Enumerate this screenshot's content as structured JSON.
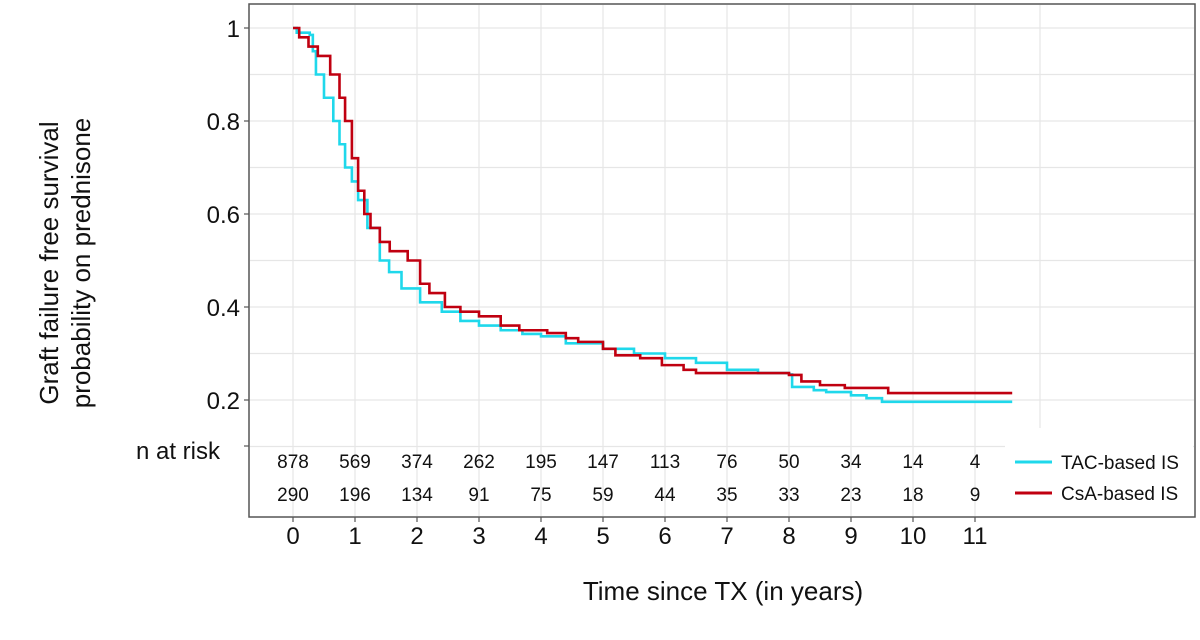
{
  "chart_data": {
    "type": "line",
    "subtype": "kaplan-meier",
    "title": "",
    "xlabel": "Time since TX (in years)",
    "ylabel_lines": [
      "Graft failure free survival",
      "probability on prednisone"
    ],
    "xlim": [
      0,
      11.6
    ],
    "ylim": [
      0.1,
      1.0
    ],
    "x_ticks": [
      0,
      1,
      2,
      3,
      4,
      5,
      6,
      7,
      8,
      9,
      10,
      11
    ],
    "x_tick_labels": [
      "0",
      "1",
      "2",
      "3",
      "4",
      "5",
      "6",
      "7",
      "8",
      "9",
      "10",
      "11"
    ],
    "y_ticks": [
      0.2,
      0.4,
      0.6,
      0.8,
      1.0
    ],
    "y_tick_labels": [
      "0.2",
      "0.4",
      "0.6",
      "0.8",
      "1"
    ],
    "grid": true,
    "legend_position": "bottom-right",
    "series": [
      {
        "name": "TAC-based IS",
        "color": "#1fd8eb",
        "x": [
          0,
          0.06,
          0.27,
          0.32,
          0.37,
          0.5,
          0.65,
          0.75,
          0.84,
          0.95,
          1.05,
          1.2,
          1.4,
          1.55,
          1.75,
          2.05,
          2.4,
          2.7,
          3.0,
          3.35,
          3.7,
          4.0,
          4.4,
          5.0,
          5.5,
          6.0,
          6.5,
          7.0,
          7.5,
          8.0,
          8.05,
          8.4,
          8.6,
          9.0,
          9.25,
          9.5,
          11.6
        ],
        "y": [
          1.0,
          0.99,
          0.985,
          0.95,
          0.9,
          0.85,
          0.8,
          0.75,
          0.7,
          0.67,
          0.63,
          0.57,
          0.5,
          0.475,
          0.44,
          0.41,
          0.39,
          0.37,
          0.36,
          0.35,
          0.342,
          0.337,
          0.322,
          0.31,
          0.3,
          0.29,
          0.28,
          0.265,
          0.258,
          0.255,
          0.228,
          0.221,
          0.217,
          0.21,
          0.204,
          0.196,
          0.196
        ]
      },
      {
        "name": "CsA-based IS",
        "color": "#c00010",
        "x": [
          0,
          0.1,
          0.25,
          0.4,
          0.6,
          0.75,
          0.84,
          0.95,
          1.05,
          1.15,
          1.25,
          1.4,
          1.56,
          1.85,
          2.05,
          2.2,
          2.45,
          2.7,
          3.0,
          3.35,
          3.65,
          4.1,
          4.4,
          4.6,
          5.0,
          5.2,
          5.6,
          5.95,
          6.3,
          6.5,
          8.0,
          8.2,
          8.5,
          8.9,
          9.6,
          11.6
        ],
        "y": [
          1.0,
          0.98,
          0.96,
          0.94,
          0.9,
          0.85,
          0.8,
          0.72,
          0.65,
          0.6,
          0.57,
          0.54,
          0.52,
          0.5,
          0.45,
          0.43,
          0.4,
          0.39,
          0.38,
          0.36,
          0.35,
          0.344,
          0.333,
          0.325,
          0.31,
          0.296,
          0.29,
          0.275,
          0.265,
          0.258,
          0.254,
          0.24,
          0.232,
          0.226,
          0.215,
          0.215
        ]
      }
    ],
    "risk_table": {
      "label": "n at risk",
      "times": [
        0,
        1,
        2,
        3,
        4,
        5,
        6,
        7,
        8,
        9,
        10,
        11
      ],
      "rows": [
        {
          "name": "TAC-based IS",
          "values": [
            "878",
            "569",
            "374",
            "262",
            "195",
            "147",
            "113",
            "76",
            "50",
            "34",
            "14",
            "4"
          ]
        },
        {
          "name": "CsA-based IS",
          "values": [
            "290",
            "196",
            "134",
            "91",
            "75",
            "59",
            "44",
            "35",
            "33",
            "23",
            "18",
            "9"
          ]
        }
      ]
    }
  }
}
